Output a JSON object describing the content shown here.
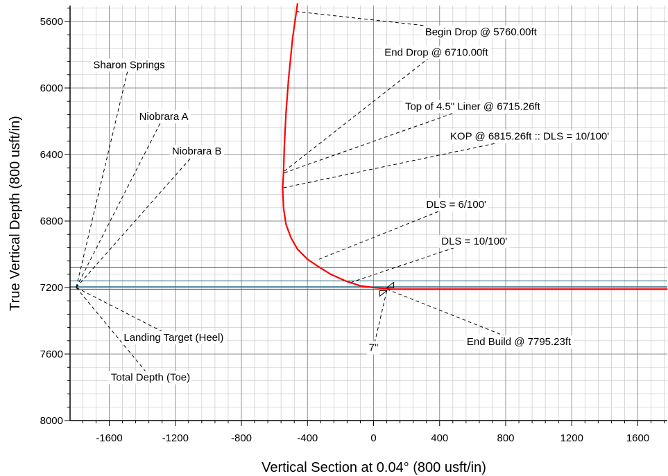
{
  "chart_data": {
    "type": "line",
    "xlabel": "Vertical Section at 0.04° (800 usft/in)",
    "ylabel": "True Vertical Depth (800 usft/in)",
    "xlim": [
      -1800,
      1780
    ],
    "ylim": [
      5490,
      8000
    ],
    "y_inverted": true,
    "xticks": [
      -1600,
      -1200,
      -800,
      -400,
      0,
      400,
      800,
      1200,
      1600
    ],
    "yticks": [
      5600,
      6000,
      6400,
      6800,
      7200,
      7600,
      8000
    ],
    "grid": true,
    "colors": {
      "well_path": "#ff0000",
      "formation_lines": "#2a6f86",
      "grid_major": "#8c8c8c",
      "grid_minor": "#c8c8c8"
    },
    "series": [
      {
        "x": [
          -460,
          -490,
          -515,
          -530,
          -540,
          -545,
          -550,
          -545,
          -530,
          -500,
          -460,
          -400,
          -340,
          -260,
          -170,
          -80,
          0,
          60,
          100,
          200,
          400,
          800,
          1200,
          1600,
          1780
        ],
        "y": [
          5490,
          5700,
          5950,
          6150,
          6350,
          6510,
          6600,
          6720,
          6820,
          6900,
          6970,
          7030,
          7070,
          7120,
          7160,
          7190,
          7200,
          7205,
          7210,
          7210,
          7210,
          7210,
          7210,
          7210,
          7210
        ]
      }
    ],
    "formation_lines_tvd": [
      7080,
      7160,
      7195,
      7210
    ],
    "annotations": [
      {
        "label": "Begin Drop @ 5760.00ft",
        "point": [
          -470,
          5540
        ],
        "label_pos": [
          650,
          5662
        ]
      },
      {
        "label": "End Drop @ 6710.00ft",
        "point": [
          -540,
          6500
        ],
        "label_pos": [
          380,
          5785
        ]
      },
      {
        "label": "Top of 4.5\" Liner @ 6715.26ft",
        "point": [
          -540,
          6510
        ],
        "label_pos": [
          600,
          6110
        ]
      },
      {
        "label": "KOP @ 6815.26ft :: DLS = 10/100'",
        "point": [
          -545,
          6600
        ],
        "label_pos": [
          945,
          6290
        ]
      },
      {
        "label": "DLS = 6/100'",
        "point": [
          -330,
          7030
        ],
        "label_pos": [
          500,
          6700
        ]
      },
      {
        "label": "DLS = 10/100'",
        "point": [
          -140,
          7170
        ],
        "label_pos": [
          610,
          6920
        ]
      },
      {
        "label": "End Build @ 7795.23ft",
        "point": [
          80,
          7210
        ],
        "label_pos": [
          880,
          7525
        ]
      },
      {
        "label": "7\"",
        "point": [
          80,
          7220
        ],
        "label_pos": [
          0,
          7560
        ]
      },
      {
        "label": "Sharon Springs",
        "point": [
          -1800,
          7200
        ],
        "label_pos": [
          -1480,
          5860
        ]
      },
      {
        "label": "Niobrara A",
        "point": [
          -1800,
          7200
        ],
        "label_pos": [
          -1270,
          6170
        ]
      },
      {
        "label": "Niobrara B",
        "point": [
          -1800,
          7200
        ],
        "label_pos": [
          -1070,
          6380
        ]
      },
      {
        "label": "Landing Target (Heel)",
        "point": [
          -1800,
          7200
        ],
        "label_pos": [
          -1210,
          7500
        ]
      },
      {
        "label": "Total Depth (Toe)",
        "point": [
          -1800,
          7200
        ],
        "label_pos": [
          -1350,
          7740
        ]
      }
    ]
  }
}
